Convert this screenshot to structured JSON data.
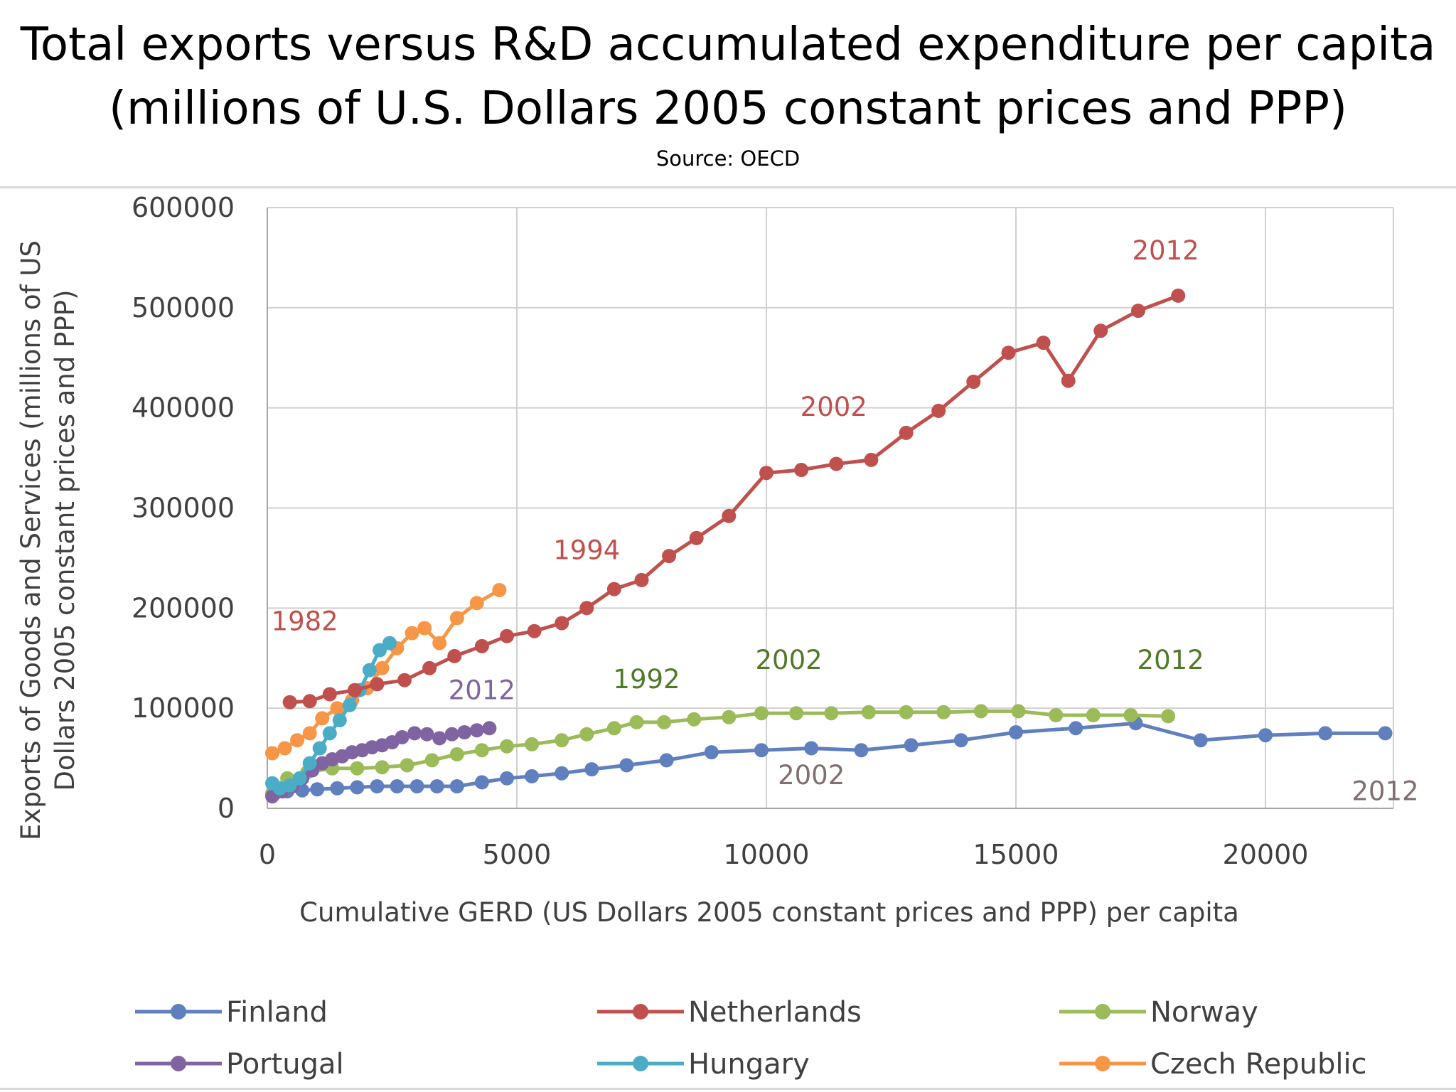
{
  "title_line1": "Total exports versus R&D accumulated expenditure per capita",
  "title_line2": "(millions of U.S. Dollars 2005 constant prices and PPP)",
  "source": "Source: OECD",
  "chart_data": {
    "type": "line",
    "xlabel": "Cumulative GERD (US Dollars 2005 constant prices and PPP) per capita",
    "ylabel_line1": "Exports of Goods and Services (millions of US",
    "ylabel_line2": "Dollars 2005 constant prices and PPP)",
    "xlim": [
      0,
      22500
    ],
    "ylim": [
      0,
      600000
    ],
    "xticks": [
      0,
      5000,
      10000,
      15000,
      20000
    ],
    "yticks": [
      0,
      100000,
      200000,
      300000,
      400000,
      500000,
      600000
    ],
    "xtick_labels": [
      "0",
      "5000",
      "10000",
      "15000",
      "20000"
    ],
    "ytick_labels": [
      "0",
      "100000",
      "200000",
      "300000",
      "400000",
      "500000",
      "600000"
    ],
    "grid": true,
    "legend_position": "bottom",
    "series": [
      {
        "name": "Finland",
        "color": "#5f7fbf",
        "points": [
          [
            150,
            15000
          ],
          [
            400,
            17000
          ],
          [
            700,
            18000
          ],
          [
            1000,
            19000
          ],
          [
            1400,
            20000
          ],
          [
            1800,
            21000
          ],
          [
            2200,
            22000
          ],
          [
            2600,
            22000
          ],
          [
            3000,
            22000
          ],
          [
            3400,
            22000
          ],
          [
            3800,
            22000
          ],
          [
            4300,
            26000
          ],
          [
            4800,
            30000
          ],
          [
            5300,
            32000
          ],
          [
            5900,
            35000
          ],
          [
            6500,
            39000
          ],
          [
            7200,
            43000
          ],
          [
            8000,
            48000
          ],
          [
            8900,
            56000
          ],
          [
            9900,
            58000
          ],
          [
            10900,
            60000
          ],
          [
            11900,
            58000
          ],
          [
            12900,
            63000
          ],
          [
            13900,
            68000
          ],
          [
            15000,
            76000
          ],
          [
            16200,
            80000
          ],
          [
            17400,
            85000
          ],
          [
            18700,
            68000
          ],
          [
            20000,
            73000
          ],
          [
            21200,
            75000
          ],
          [
            22400,
            75000
          ]
        ]
      },
      {
        "name": "Netherlands",
        "color": "#c0504d",
        "points": [
          [
            450,
            106000
          ],
          [
            850,
            107000
          ],
          [
            1250,
            114000
          ],
          [
            1750,
            118000
          ],
          [
            2200,
            124000
          ],
          [
            2750,
            128000
          ],
          [
            3250,
            140000
          ],
          [
            3750,
            152000
          ],
          [
            4300,
            162000
          ],
          [
            4800,
            172000
          ],
          [
            5350,
            177000
          ],
          [
            5900,
            185000
          ],
          [
            6400,
            200000
          ],
          [
            6950,
            219000
          ],
          [
            7500,
            228000
          ],
          [
            8050,
            252000
          ],
          [
            8600,
            270000
          ],
          [
            9250,
            292000
          ],
          [
            10000,
            335000
          ],
          [
            10700,
            338000
          ],
          [
            11400,
            344000
          ],
          [
            12100,
            348000
          ],
          [
            12800,
            375000
          ],
          [
            13450,
            397000
          ],
          [
            14150,
            426000
          ],
          [
            14850,
            455000
          ],
          [
            15550,
            465000
          ],
          [
            16050,
            427000
          ],
          [
            16700,
            477000
          ],
          [
            17450,
            497000
          ],
          [
            18250,
            512000
          ]
        ]
      },
      {
        "name": "Norway",
        "color": "#9bbb59",
        "points": [
          [
            100,
            15000
          ],
          [
            400,
            30000
          ],
          [
            800,
            36000
          ],
          [
            1300,
            40000
          ],
          [
            1800,
            40000
          ],
          [
            2300,
            41000
          ],
          [
            2800,
            43000
          ],
          [
            3300,
            48000
          ],
          [
            3800,
            54000
          ],
          [
            4300,
            58000
          ],
          [
            4800,
            62000
          ],
          [
            5300,
            64000
          ],
          [
            5900,
            68000
          ],
          [
            6400,
            74000
          ],
          [
            6950,
            80000
          ],
          [
            7400,
            86000
          ],
          [
            7950,
            86000
          ],
          [
            8550,
            89000
          ],
          [
            9250,
            91000
          ],
          [
            9900,
            95000
          ],
          [
            10600,
            95000
          ],
          [
            11300,
            95000
          ],
          [
            12050,
            96000
          ],
          [
            12800,
            96000
          ],
          [
            13550,
            96000
          ],
          [
            14300,
            97000
          ],
          [
            15050,
            97000
          ],
          [
            15800,
            93000
          ],
          [
            16550,
            93000
          ],
          [
            17300,
            93000
          ],
          [
            18050,
            92000
          ]
        ]
      },
      {
        "name": "Portugal",
        "color": "#8064a2",
        "points": [
          [
            100,
            12000
          ],
          [
            300,
            17000
          ],
          [
            500,
            22000
          ],
          [
            700,
            30000
          ],
          [
            900,
            38000
          ],
          [
            1100,
            45000
          ],
          [
            1300,
            49000
          ],
          [
            1500,
            52000
          ],
          [
            1700,
            56000
          ],
          [
            1900,
            58000
          ],
          [
            2100,
            61000
          ],
          [
            2300,
            63000
          ],
          [
            2500,
            66000
          ],
          [
            2700,
            71000
          ],
          [
            2950,
            75000
          ],
          [
            3200,
            74000
          ],
          [
            3450,
            70000
          ],
          [
            3700,
            74000
          ],
          [
            3950,
            76000
          ],
          [
            4200,
            78000
          ],
          [
            4450,
            80000
          ]
        ]
      },
      {
        "name": "Hungary",
        "color": "#4bacc6",
        "points": [
          [
            100,
            25000
          ],
          [
            250,
            20000
          ],
          [
            450,
            23000
          ],
          [
            650,
            30000
          ],
          [
            850,
            45000
          ],
          [
            1050,
            60000
          ],
          [
            1250,
            75000
          ],
          [
            1450,
            88000
          ],
          [
            1650,
            103000
          ],
          [
            1850,
            118000
          ],
          [
            2050,
            138000
          ],
          [
            2250,
            158000
          ],
          [
            2450,
            165000
          ]
        ]
      },
      {
        "name": "Czech Republic",
        "color": "#f79646",
        "points": [
          [
            100,
            55000
          ],
          [
            350,
            60000
          ],
          [
            600,
            68000
          ],
          [
            850,
            75000
          ],
          [
            1100,
            90000
          ],
          [
            1400,
            100000
          ],
          [
            1700,
            108000
          ],
          [
            2000,
            120000
          ],
          [
            2300,
            140000
          ],
          [
            2600,
            160000
          ],
          [
            2900,
            175000
          ],
          [
            3150,
            180000
          ],
          [
            3450,
            165000
          ],
          [
            3800,
            190000
          ],
          [
            4200,
            205000
          ],
          [
            4650,
            218000
          ]
        ]
      }
    ],
    "annotations": [
      {
        "text": "2012",
        "x": 18000,
        "y": 548000,
        "color": "#c0504d"
      },
      {
        "text": "2002",
        "x": 11350,
        "y": 392000,
        "color": "#c0504d"
      },
      {
        "text": "1994",
        "x": 6400,
        "y": 249000,
        "color": "#c0504d"
      },
      {
        "text": "1982",
        "x": 750,
        "y": 178000,
        "color": "#c0504d"
      },
      {
        "text": "2012",
        "x": 4300,
        "y": 109000,
        "color": "#8064a2"
      },
      {
        "text": "1992",
        "x": 7600,
        "y": 120000,
        "color": "#4f7a28"
      },
      {
        "text": "2002",
        "x": 10450,
        "y": 139000,
        "color": "#4f7a28"
      },
      {
        "text": "2012",
        "x": 18100,
        "y": 139000,
        "color": "#4f7a28"
      },
      {
        "text": "2002",
        "x": 10900,
        "y": 24000,
        "color": "#7f6f6f"
      },
      {
        "text": "2012",
        "x": 22400,
        "y": 8000,
        "color": "#7f6f6f"
      }
    ]
  }
}
